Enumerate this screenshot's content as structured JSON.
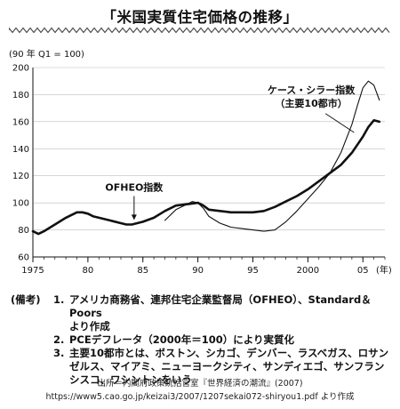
{
  "header": {
    "title": "「米国実質住宅価格の推移」"
  },
  "chart_data": {
    "type": "line",
    "unit_label": "(90 年 Q1 = 100)",
    "ylim": [
      60,
      200
    ],
    "yticks": [
      "60",
      "80",
      "100",
      "120",
      "140",
      "160",
      "180",
      "200"
    ],
    "xlim": [
      1975,
      2007
    ],
    "xticks": [
      {
        "value": 1975,
        "label": "1975"
      },
      {
        "value": 1980,
        "label": "80"
      },
      {
        "value": 1985,
        "label": "85"
      },
      {
        "value": 1990,
        "label": "90"
      },
      {
        "value": 1995,
        "label": "95"
      },
      {
        "value": 2000,
        "label": "2000"
      },
      {
        "value": 2005,
        "label": "05"
      }
    ],
    "x_unit_label": "(年)",
    "grid": true,
    "series": [
      {
        "name": "OFHEO指数",
        "x": [
          1975,
          1975.5,
          1976,
          1977,
          1978,
          1979,
          1979.5,
          1980,
          1980.5,
          1981,
          1982,
          1983,
          1983.5,
          1984,
          1985,
          1986,
          1987,
          1988,
          1989,
          1990,
          1990.5,
          1991,
          1992,
          1993,
          1994,
          1995,
          1996,
          1997,
          1998,
          1999,
          2000,
          2001,
          2002,
          2003,
          2004,
          2005,
          2005.5,
          2006,
          2006.5
        ],
        "y": [
          79,
          77,
          79,
          84,
          89,
          93,
          93,
          92,
          90,
          89,
          87,
          85,
          84,
          84,
          86,
          89,
          94,
          98,
          99,
          100,
          98,
          95,
          94,
          93,
          93,
          93,
          94,
          97,
          101,
          105,
          110,
          116,
          122,
          128,
          137,
          149,
          156,
          161,
          160
        ]
      },
      {
        "name": "ケース・シラー指数",
        "label_lines": [
          "ケース・シラー指数",
          "（主要10都市）"
        ],
        "x": [
          1987,
          1988,
          1989,
          1989.5,
          1990,
          1990.5,
          1991,
          1992,
          1993,
          1994,
          1995,
          1996,
          1997,
          1998,
          1999,
          2000,
          2001,
          2002,
          2003,
          2004,
          2004.5,
          2005,
          2005.5,
          2006,
          2006.5
        ],
        "y": [
          87,
          95,
          99,
          101,
          100,
          96,
          90,
          85,
          82,
          81,
          80,
          79,
          80,
          86,
          94,
          103,
          112,
          122,
          137,
          158,
          172,
          185,
          190,
          187,
          176
        ]
      }
    ]
  },
  "notes": {
    "head": "(備考)",
    "items": [
      {
        "num": "1.",
        "lines": [
          "アメリカ商務省、連邦住宅企業監督局（OFHEO）、Standard＆Poors",
          "より作成"
        ]
      },
      {
        "num": "2.",
        "lines": [
          "PCEデフレータ（2000年＝100）により実質化"
        ]
      },
      {
        "num": "3.",
        "lines": [
          "主要10都市とは、ボストン、シカゴ、デンバー、ラスベガス、ロサン",
          "ゼルス、マイアミ、ニューヨークシティ、サンディエゴ、サンフラン",
          "シスコ、ワシントンをいう"
        ]
      }
    ]
  },
  "source": {
    "line1": "出所＝内閣府政策統括官室『世界経済の潮流』(2007)",
    "line2": "https://www5.cao.go.jp/keizai3/2007/1207sekai072-shiryou1.pdf より作成"
  }
}
